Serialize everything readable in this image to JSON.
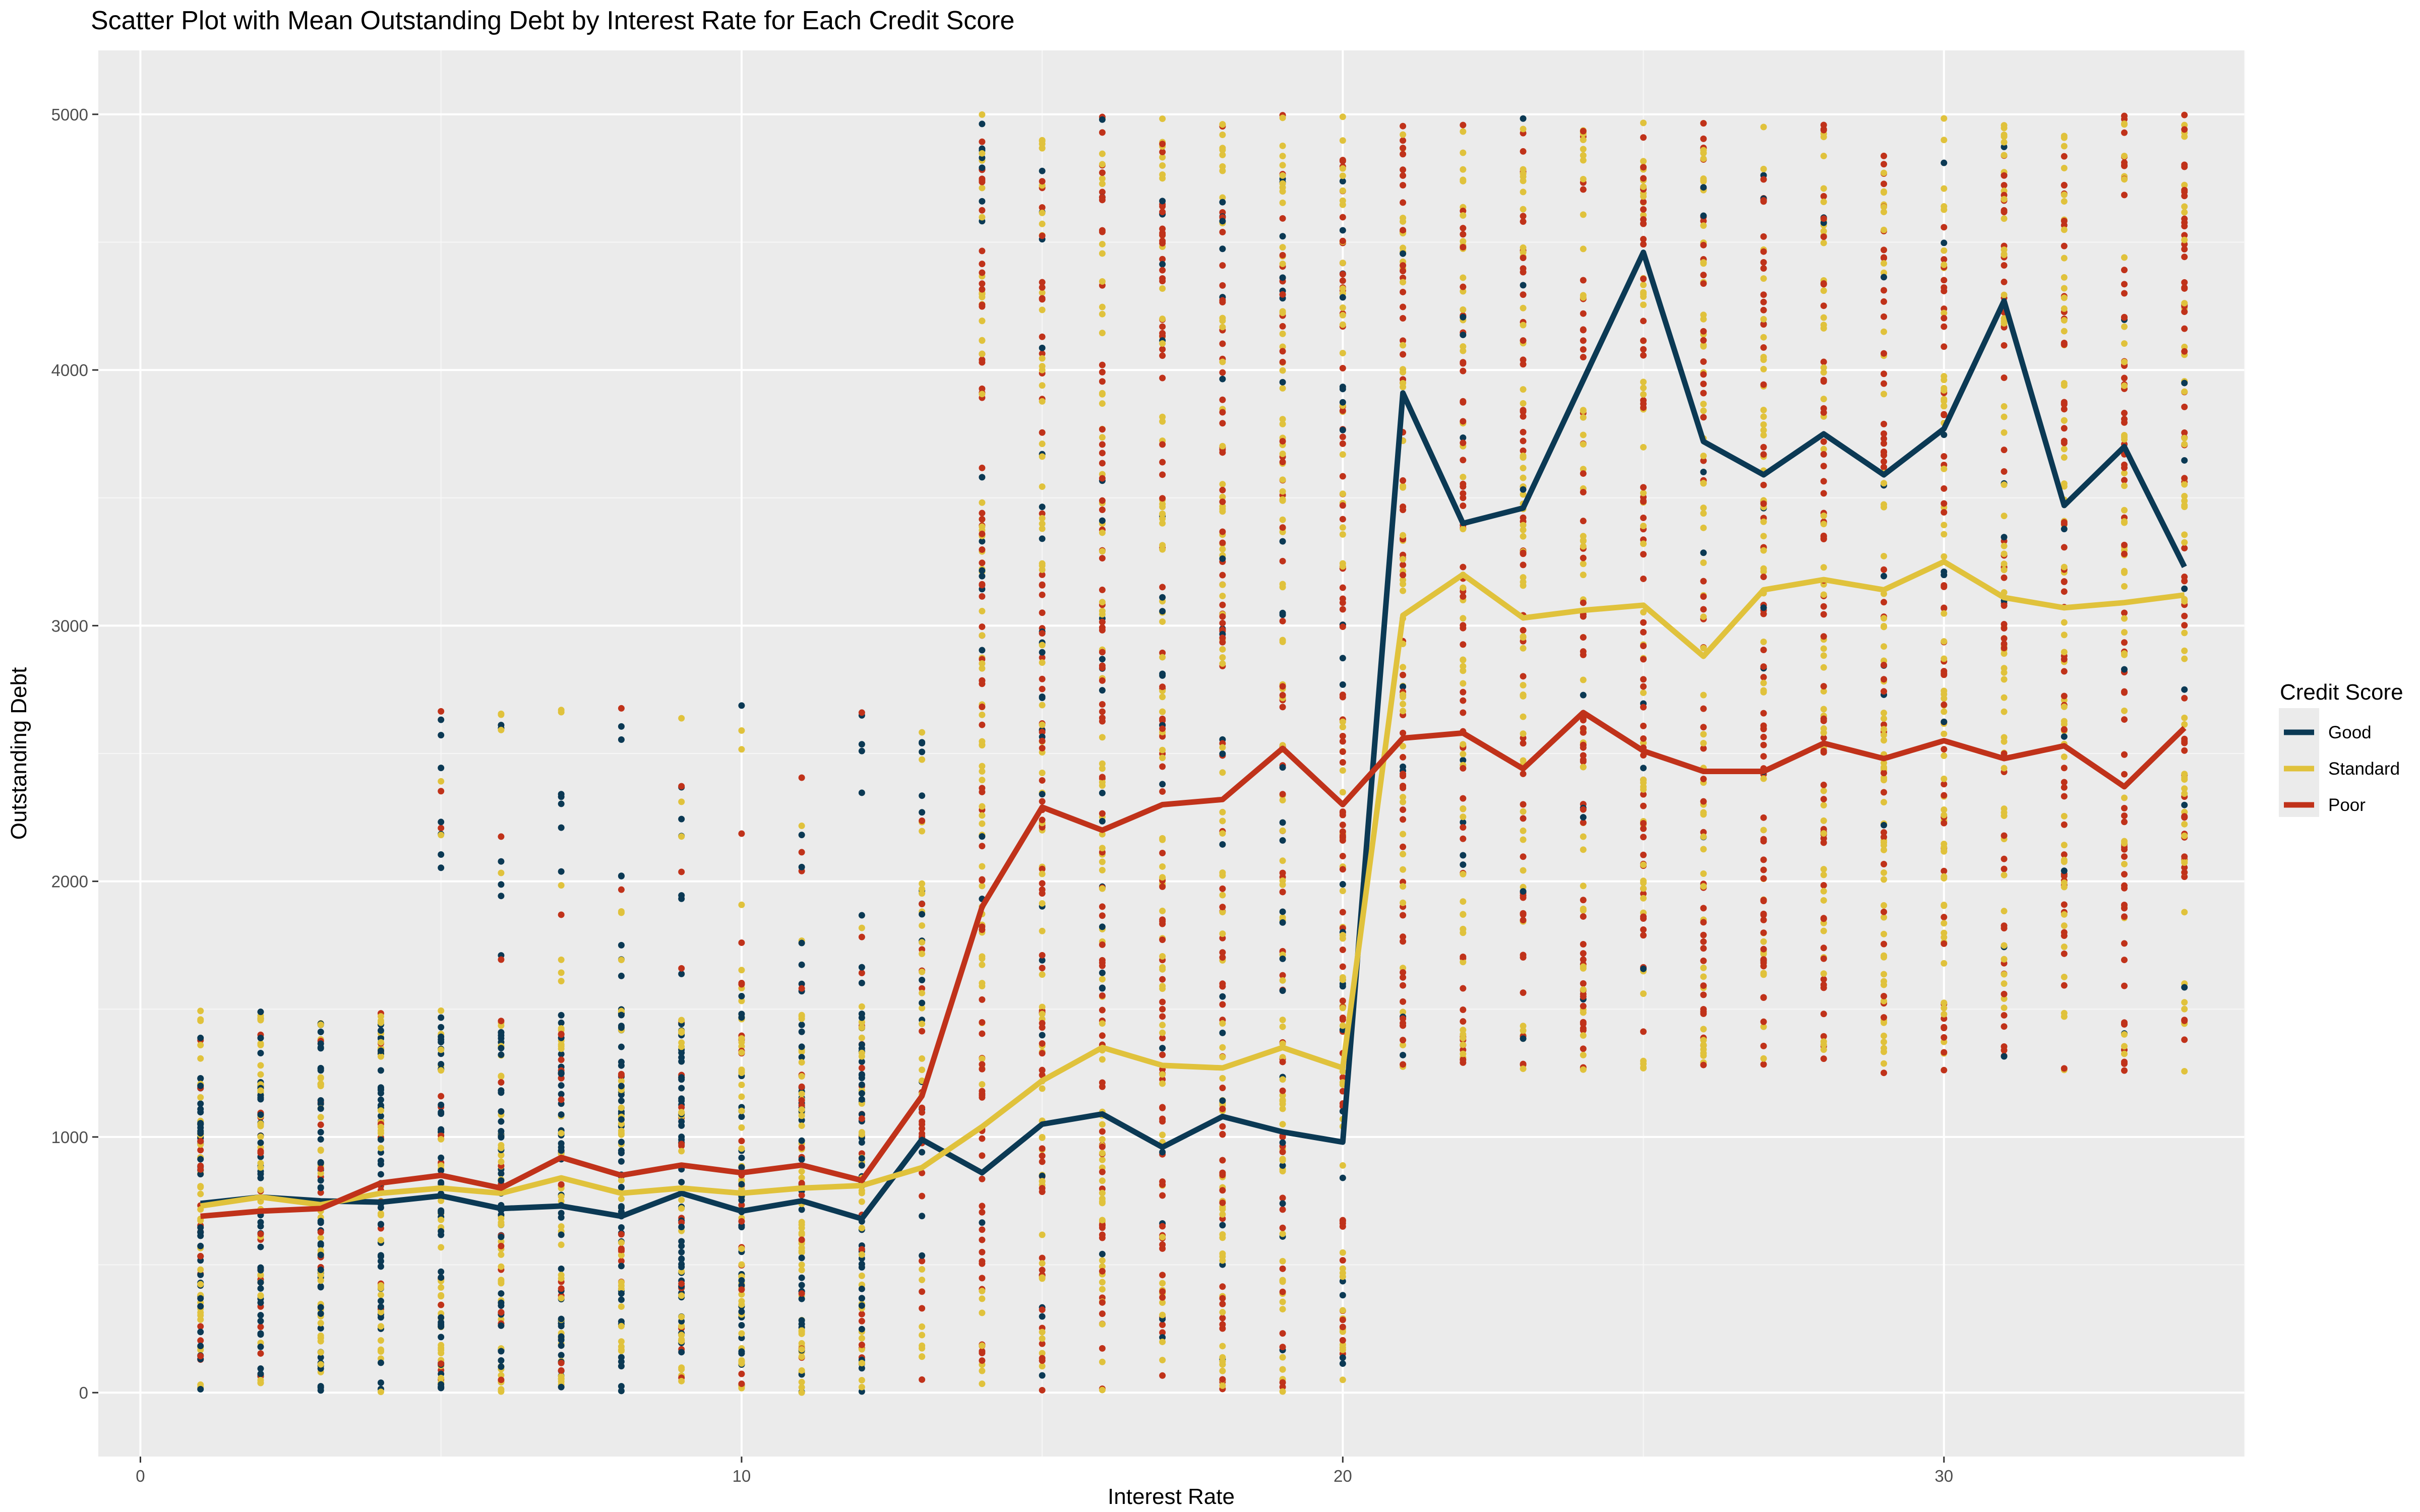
{
  "chart_data": {
    "type": "scatter",
    "title": "Scatter Plot with Mean Outstanding Debt by Interest Rate for Each Credit Score",
    "xlabel": "Interest Rate",
    "ylabel": "Outstanding Debt",
    "xlim": [
      -0.7,
      35
    ],
    "ylim": [
      -250,
      5250
    ],
    "x_ticks": [
      0,
      10,
      20,
      30
    ],
    "y_ticks": [
      0,
      1000,
      2000,
      3000,
      4000,
      5000
    ],
    "grid": true,
    "legend_position": "right",
    "legend_title": "Credit Score",
    "x": [
      1,
      2,
      3,
      4,
      5,
      6,
      7,
      8,
      9,
      10,
      11,
      12,
      13,
      14,
      15,
      16,
      17,
      18,
      19,
      20,
      21,
      22,
      23,
      24,
      25,
      26,
      27,
      28,
      29,
      30,
      31,
      32,
      33,
      34
    ],
    "series": [
      {
        "name": "Good",
        "color": "#0b3954",
        "values": [
          740,
          765,
          750,
          745,
          770,
          720,
          730,
          690,
          780,
          710,
          750,
          680,
          990,
          860,
          1050,
          1090,
          960,
          1080,
          1020,
          980,
          3910,
          3400,
          3460,
          3960,
          4460,
          3720,
          3590,
          3750,
          3590,
          3770,
          4270,
          3470,
          3700,
          3230
        ]
      },
      {
        "name": "Standard",
        "color": "#e0c23c",
        "values": [
          730,
          765,
          735,
          780,
          800,
          780,
          840,
          780,
          800,
          780,
          800,
          810,
          880,
          1040,
          1220,
          1350,
          1280,
          1270,
          1350,
          1270,
          3040,
          3200,
          3030,
          3060,
          3080,
          2880,
          3140,
          3180,
          3140,
          3250,
          3110,
          3070,
          3090,
          3120
        ]
      },
      {
        "name": "Poor",
        "color": "#c0321a",
        "values": [
          690,
          710,
          720,
          820,
          850,
          800,
          920,
          850,
          890,
          860,
          890,
          830,
          1160,
          1900,
          2290,
          2200,
          2300,
          2320,
          2520,
          2300,
          2560,
          2580,
          2440,
          2660,
          2510,
          2430,
          2430,
          2540,
          2480,
          2550,
          2480,
          2530,
          2370,
          2600
        ]
      }
    ],
    "scatter_points": "individual observations at each integer interest rate from 1 to 34; rates 1-12 mostly 0-1500 with sparse points up to ~2700, rates 14-20 span 0-5000, rates 21-34 span ~1250-5000"
  }
}
